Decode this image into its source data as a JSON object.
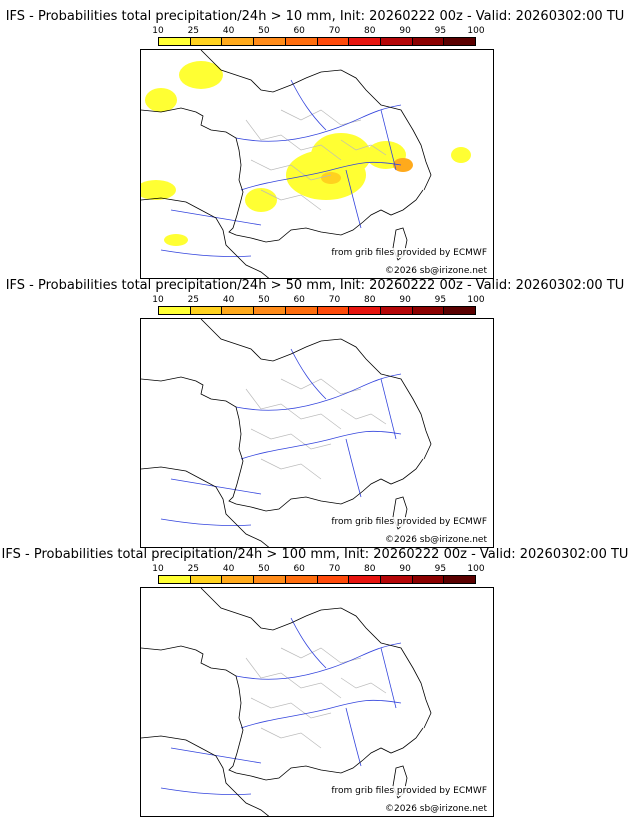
{
  "scale_ticks": [
    "10",
    "25",
    "40",
    "50",
    "60",
    "70",
    "80",
    "90",
    "95",
    "100"
  ],
  "scale_colors": [
    "#ffff33",
    "#ffd21f",
    "#ffaa1c",
    "#ff8b19",
    "#ff6d0e",
    "#ff4a0b",
    "#e7140f",
    "#b50608",
    "#8b0000",
    "#5a0000"
  ],
  "panels": [
    {
      "title": "IFS - Probabilities total precipitation/24h > 10 mm, Init: 20260222 00z - Valid: 20260302:00 TU",
      "source": "from grib files provided by ECMWF",
      "copyright": "©2026 sb@irizone.net",
      "has_precip": true
    },
    {
      "title": "IFS - Probabilities total precipitation/24h > 50 mm, Init: 20260222 00z - Valid: 20260302:00 TU",
      "source": "from grib files provided by ECMWF",
      "copyright": "©2026 sb@irizone.net",
      "has_precip": false
    },
    {
      "title": "IFS - Probabilities total precipitation/24h > 100 mm, Init: 20260222 00z - Valid: 20260302:00 TU",
      "source": "from grib files provided by ECMWF",
      "copyright": "©2026 sb@irizone.net",
      "has_precip": false
    }
  ]
}
